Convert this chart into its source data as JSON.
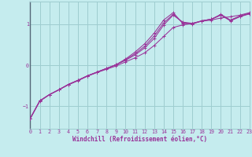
{
  "xlabel": "Windchill (Refroidissement éolien,°C)",
  "background_color": "#c5ecee",
  "grid_color": "#9ecdd0",
  "line_color": "#993399",
  "spine_color": "#7799aa",
  "xlim": [
    0,
    23
  ],
  "ylim": [
    -1.55,
    1.55
  ],
  "yticks": [
    -1,
    0,
    1
  ],
  "xticks": [
    0,
    1,
    2,
    3,
    4,
    5,
    6,
    7,
    8,
    9,
    10,
    11,
    12,
    13,
    14,
    15,
    16,
    17,
    18,
    19,
    20,
    21,
    22,
    23
  ],
  "line1_x": [
    0,
    1,
    2,
    3,
    4,
    5,
    6,
    7,
    8,
    9,
    10,
    11,
    12,
    13,
    14,
    15,
    16,
    17,
    18,
    19,
    20,
    21,
    22,
    23
  ],
  "line1_y": [
    -1.3,
    -0.88,
    -0.72,
    -0.6,
    -0.48,
    -0.38,
    -0.27,
    -0.18,
    -0.1,
    -0.02,
    0.08,
    0.18,
    0.3,
    0.48,
    0.7,
    0.92,
    0.98,
    1.02,
    1.07,
    1.1,
    1.15,
    1.18,
    1.22,
    1.28
  ],
  "line2_x": [
    0,
    1,
    2,
    3,
    4,
    5,
    6,
    7,
    8,
    9,
    10,
    11,
    12,
    13,
    14,
    15,
    16,
    17,
    18,
    19,
    20,
    21,
    22,
    23
  ],
  "line2_y": [
    -1.3,
    -0.87,
    -0.72,
    -0.6,
    -0.47,
    -0.37,
    -0.26,
    -0.17,
    -0.08,
    0.01,
    0.12,
    0.25,
    0.42,
    0.65,
    0.98,
    1.22,
    1.05,
    1.02,
    1.08,
    1.12,
    1.22,
    1.08,
    1.18,
    1.25
  ],
  "line3_x": [
    0,
    1,
    2,
    3,
    4,
    5,
    6,
    7,
    8,
    9,
    10,
    11,
    12,
    13,
    14,
    15,
    16,
    17,
    18,
    19,
    20,
    21,
    22,
    23
  ],
  "line3_y": [
    -1.3,
    -0.87,
    -0.72,
    -0.6,
    -0.47,
    -0.37,
    -0.26,
    -0.17,
    -0.08,
    0.01,
    0.15,
    0.32,
    0.52,
    0.78,
    1.1,
    1.28,
    1.02,
    1.0,
    1.08,
    1.12,
    1.24,
    1.1,
    1.2,
    1.27
  ],
  "line4_x": [
    0,
    1,
    2,
    3,
    4,
    5,
    6,
    7,
    8,
    9,
    10,
    11,
    12,
    13,
    14,
    15,
    16,
    17,
    18,
    19,
    20,
    21,
    22,
    23
  ],
  "line4_y": [
    -1.3,
    -0.87,
    -0.72,
    -0.6,
    -0.47,
    -0.37,
    -0.26,
    -0.17,
    -0.08,
    0.01,
    0.13,
    0.28,
    0.46,
    0.71,
    1.03,
    1.24,
    1.03,
    1.01,
    1.08,
    1.12,
    1.22,
    1.09,
    1.19,
    1.26
  ]
}
